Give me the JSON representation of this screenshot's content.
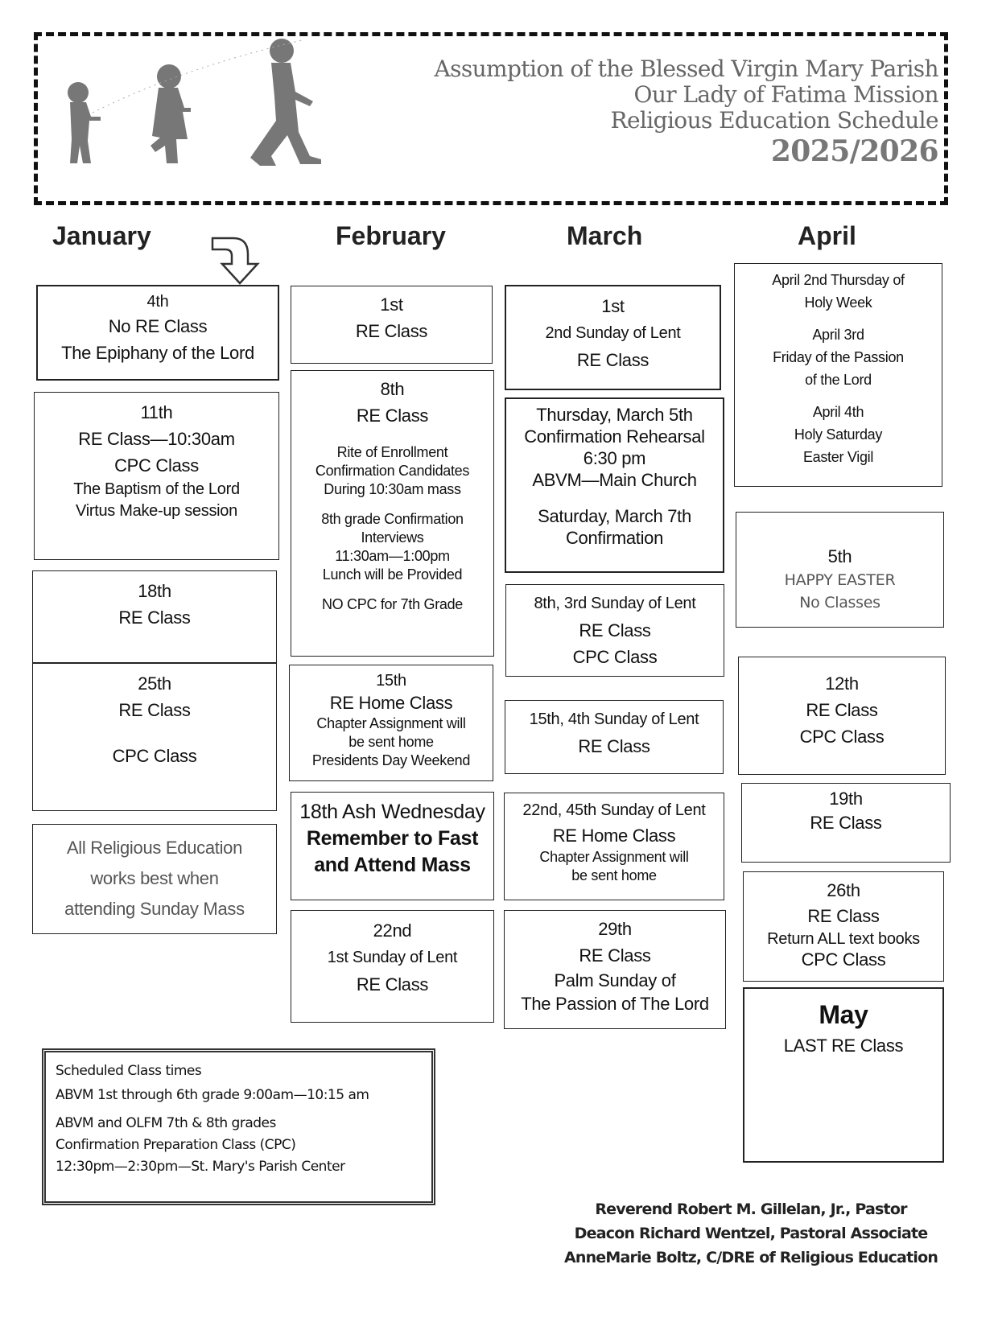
{
  "header": {
    "lines": [
      "Assumption of the Blessed Virgin Mary Parish",
      "Our Lady of Fatima Mission",
      "Religious Education Schedule"
    ],
    "year": "2025/2026"
  },
  "months": [
    "January",
    "February",
    "March",
    "April"
  ],
  "january": {
    "b1": [
      "4th",
      "No RE Class",
      "The Epiphany of the Lord"
    ],
    "b2": [
      "11th",
      "RE Class—10:30am",
      "CPC Class",
      "The Baptism of the Lord",
      "Virtus Make-up session"
    ],
    "b3": [
      "18th",
      "RE Class"
    ],
    "b4": [
      "25th",
      "RE Class",
      "CPC Class"
    ],
    "b5": [
      "All Religious Education",
      "works best when",
      "attending Sunday Mass"
    ]
  },
  "february": {
    "b1": [
      "1st",
      "RE Class"
    ],
    "b2": [
      "8th",
      "RE Class",
      "Rite of Enrollment",
      "Confirmation Candidates",
      "During 10:30am mass",
      "8th grade Confirmation",
      "Interviews",
      "11:30am—1:00pm",
      "Lunch will be Provided",
      "NO CPC for  7th Grade"
    ],
    "b3": [
      "15th",
      "RE Home Class",
      "Chapter Assignment will",
      "be sent home",
      "Presidents Day Weekend"
    ],
    "b4": [
      "18th Ash Wednesday",
      "Remember to Fast",
      "and Attend Mass"
    ],
    "b5": [
      "22nd",
      "1st Sunday of Lent",
      "RE Class"
    ]
  },
  "march": {
    "b1": [
      "1st",
      "2nd Sunday of Lent",
      "RE Class"
    ],
    "b2": [
      "Thursday, March 5th",
      "Confirmation Rehearsal",
      "6:30 pm",
      "ABVM—Main Church",
      "Saturday, March 7th",
      "Confirmation"
    ],
    "b3": [
      "8th, 3rd Sunday of Lent",
      "RE Class",
      "CPC Class"
    ],
    "b4": [
      "15th, 4th Sunday of Lent",
      "RE Class"
    ],
    "b5": [
      "22nd, 45th Sunday of Lent",
      "RE Home Class",
      "Chapter Assignment will",
      "be sent home"
    ],
    "b6": [
      "29th",
      "RE Class",
      "Palm Sunday  of",
      "The Passion of The Lord"
    ]
  },
  "april": {
    "b1": [
      "April 2nd Thursday of",
      "Holy Week",
      "April 3rd",
      "Friday of the Passion",
      "of the Lord",
      "April 4th",
      "Holy Saturday",
      "Easter Vigil"
    ],
    "b2": [
      "5th",
      "HAPPY EASTER",
      "No Classes"
    ],
    "b3": [
      "12th",
      "RE Class",
      "CPC Class"
    ],
    "b4": [
      "19th",
      "RE Class"
    ],
    "b5": [
      "26th",
      "RE Class",
      "Return ALL text books",
      "CPC Class"
    ],
    "b6": [
      "May",
      "LAST RE Class"
    ]
  },
  "schedule": {
    "lines": [
      "Scheduled Class times",
      "ABVM 1st through 6th grade 9:00am—10:15 am",
      "ABVM and OLFM  7th & 8th grades",
      "Confirmation Preparation Class  (CPC)",
      "12:30pm—2:30pm—St. Mary's Parish Center"
    ]
  },
  "staff": [
    "Reverend Robert M. Gillelan, Jr., Pastor",
    "Deacon Richard Wentzel, Pastoral Associate",
    "AnneMarie Boltz, C/DRE of Religious Education"
  ],
  "icons": {
    "arrow": "curved-arrow-down-right-icon",
    "figures": "children-silhouettes-icon"
  }
}
